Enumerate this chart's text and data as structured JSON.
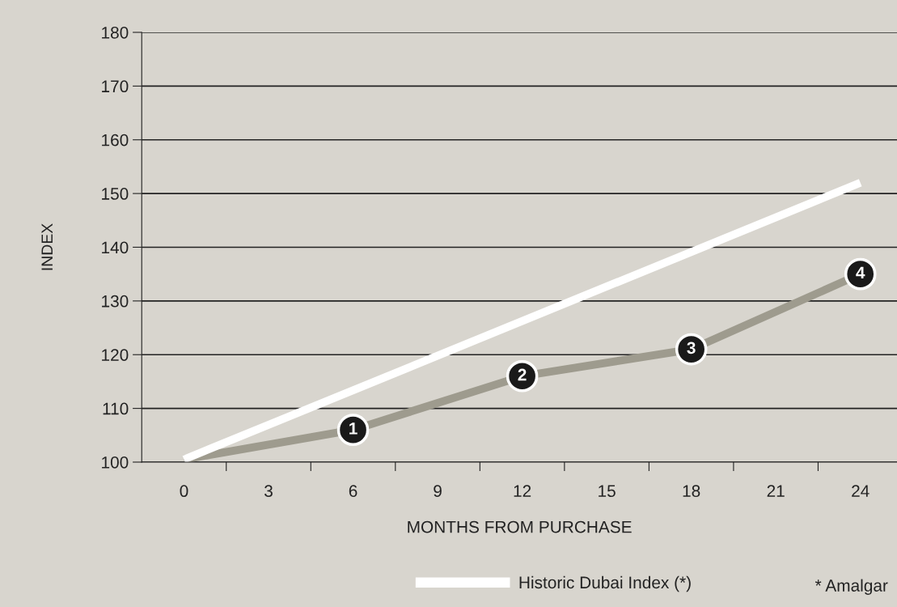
{
  "chart_data": {
    "type": "line",
    "xlabel": "MONTHS FROM PURCHASE",
    "ylabel": "INDEX",
    "xlim": [
      -1.5,
      25.3
    ],
    "xticks": [
      0,
      {
        "value": 1.5,
        "label": null
      },
      3,
      {
        "value": 4.5,
        "label": null
      },
      6,
      {
        "value": 7.5,
        "label": null
      },
      9,
      {
        "value": 10.5,
        "label": null
      },
      12,
      {
        "value": 13.5,
        "label": null
      },
      15,
      {
        "value": 16.5,
        "label": null
      },
      18,
      {
        "value": 19.5,
        "label": null
      },
      21,
      {
        "value": 22.5,
        "label": null
      },
      24
    ],
    "ylim": [
      100,
      180
    ],
    "yticks": [
      100,
      110,
      120,
      130,
      140,
      150,
      160,
      170,
      180
    ],
    "grid": "y",
    "legend": "bottom",
    "line_style": "solid",
    "series": [
      {
        "color": "#9e9b8e",
        "marker": "none",
        "x": [
          0,
          6,
          12,
          18,
          24
        ],
        "values": [
          100.5,
          106,
          116,
          121,
          135
        ]
      },
      {
        "type": "scatter",
        "color": "#1a1a1a",
        "marker": "circle",
        "x": [
          6,
          12,
          18,
          24
        ],
        "values": [
          106,
          116,
          121,
          135
        ]
      },
      {
        "name": "Historic Dubai Index (*)",
        "color": "#ffffff",
        "marker": "none",
        "x": [
          0,
          24
        ],
        "values": [
          100.5,
          152
        ]
      }
    ],
    "annotations": [
      {
        "text": "1",
        "x": 6,
        "y": 106
      },
      {
        "text": "2",
        "x": 12,
        "y": 116
      },
      {
        "text": "3",
        "x": 18,
        "y": 121
      },
      {
        "text": "4",
        "x": 24,
        "y": 135
      },
      "* Amalgar"
    ]
  }
}
